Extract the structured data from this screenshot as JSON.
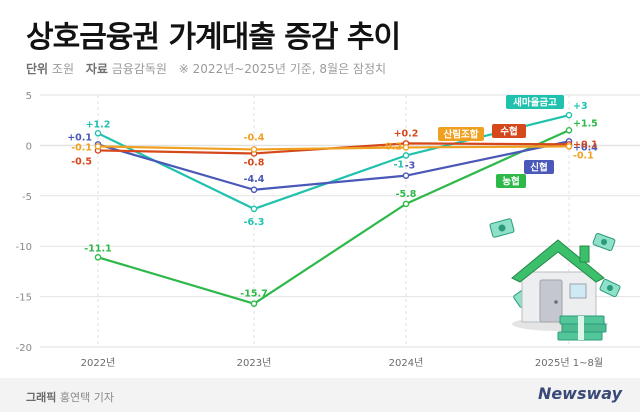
{
  "title": "상호금융권 가계대출 증감 추이",
  "meta": {
    "unit_label": "단위",
    "unit_value": "조원",
    "source_label": "자료",
    "source_value": "금융감독원",
    "note": "※ 2022년~2025년 기준, 8월은 잠정치"
  },
  "footer": {
    "graphic_label": "그래픽",
    "graphic_author": "홍연택 기자",
    "brand": "Newsway"
  },
  "chart_data": {
    "type": "line",
    "categories": [
      "2022년",
      "2023년",
      "2024년",
      "2025년 1~8월"
    ],
    "ylim": [
      -20,
      5
    ],
    "yticks": [
      5,
      0,
      -5,
      -10,
      -15,
      -20
    ],
    "ytick_labels": [
      "5",
      "0",
      "-5",
      "-10",
      "-15",
      "-20"
    ],
    "grid": true,
    "series": [
      {
        "name": "새마을금고",
        "color": "#20c2ae",
        "values": [
          1.2,
          -6.3,
          -1,
          3
        ],
        "labels": [
          "+1.2",
          "-6.3",
          "-1",
          "+3"
        ]
      },
      {
        "name": "농협",
        "color": "#2eb84a",
        "values": [
          -11.1,
          -15.7,
          -5.8,
          1.5
        ],
        "labels": [
          "-11.1",
          "-15.7",
          "-5.8",
          "+1.5"
        ]
      },
      {
        "name": "신협",
        "color": "#4a58b8",
        "values": [
          0.1,
          -4.4,
          -3,
          0.4
        ],
        "labels": [
          "+0.1",
          "-4.4",
          "-3",
          "+0.4"
        ]
      },
      {
        "name": "수협",
        "color": "#d4481c",
        "values": [
          -0.5,
          -0.8,
          0.2,
          0.1
        ],
        "labels": [
          "-0.5",
          "-0.8",
          "+0.2",
          "+0.1"
        ]
      },
      {
        "name": "산림조합",
        "color": "#f0a020",
        "values": [
          -0.1,
          -0.4,
          -0.2,
          -0.1
        ],
        "labels": [
          "-0.1",
          "-0.4",
          "-0.2",
          "-0.1"
        ]
      }
    ]
  }
}
